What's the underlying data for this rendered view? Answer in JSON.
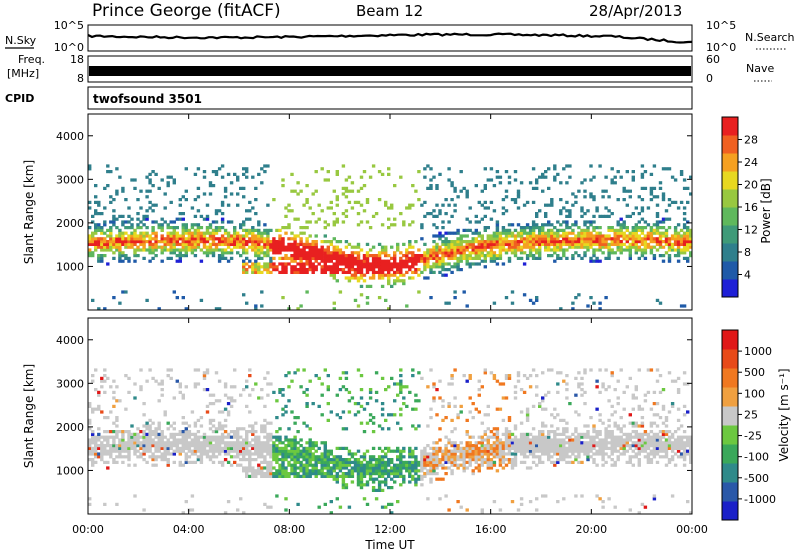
{
  "header": {
    "station": "Prince George (fitACF)",
    "beam": "Beam 12",
    "date": "28/Apr/2013"
  },
  "top_panels": {
    "nsky_label": "N.Sky",
    "nsearch_label": "N.Search",
    "nsearch_tick_top": "10^5",
    "nsearch_tick_bottom": "10^0",
    "freq_label_1": "Freq.",
    "freq_label_2": "[MHz]",
    "freq_tick_top": "18",
    "freq_tick_bottom": "8",
    "nave_label": "Nave",
    "nave_tick_top": "60",
    "nave_tick_bottom": "0",
    "cpid_label": "CPID",
    "cpid_value": "twofsound 3501",
    "nsky_tick_top": "10^5",
    "nsky_tick_bottom": "10^0"
  },
  "colors": {
    "power": [
      "#1f20d6",
      "#1f5aa8",
      "#2f7f8c",
      "#3f9a78",
      "#5fb85c",
      "#98c840",
      "#e8d820",
      "#f5a020",
      "#f06020",
      "#e82020"
    ],
    "velocity": [
      "#1a20c8",
      "#2a58a8",
      "#2f8a8a",
      "#3aa85a",
      "#6cc840",
      "#c8c8c8",
      "#f0a040",
      "#f07820",
      "#e84a18",
      "#e01818"
    ]
  },
  "chart_data": [
    {
      "type": "heatmap",
      "name": "power",
      "ylabel": "Slant Range [km]",
      "ylim": [
        0,
        4500
      ],
      "yticks": [
        "1000",
        "2000",
        "3000",
        "4000"
      ],
      "colorbar_label": "Power [dB]",
      "colorbar_ticks": [
        "4",
        "8",
        "12",
        "16",
        "20",
        "24",
        "28"
      ]
    },
    {
      "type": "heatmap",
      "name": "velocity",
      "ylabel": "Slant Range [km]",
      "ylim": [
        0,
        4500
      ],
      "yticks": [
        "1000",
        "2000",
        "3000",
        "4000"
      ],
      "colorbar_label": "Velocity [m s⁻¹]",
      "colorbar_ticks": [
        "1000",
        "500",
        "100",
        "25",
        "-25",
        "-100",
        "-500",
        "-1000"
      ],
      "xlabel": "Time UT",
      "xticks": [
        "00:00",
        "04:00",
        "08:00",
        "12:00",
        "16:00",
        "20:00",
        "00:00"
      ]
    }
  ]
}
